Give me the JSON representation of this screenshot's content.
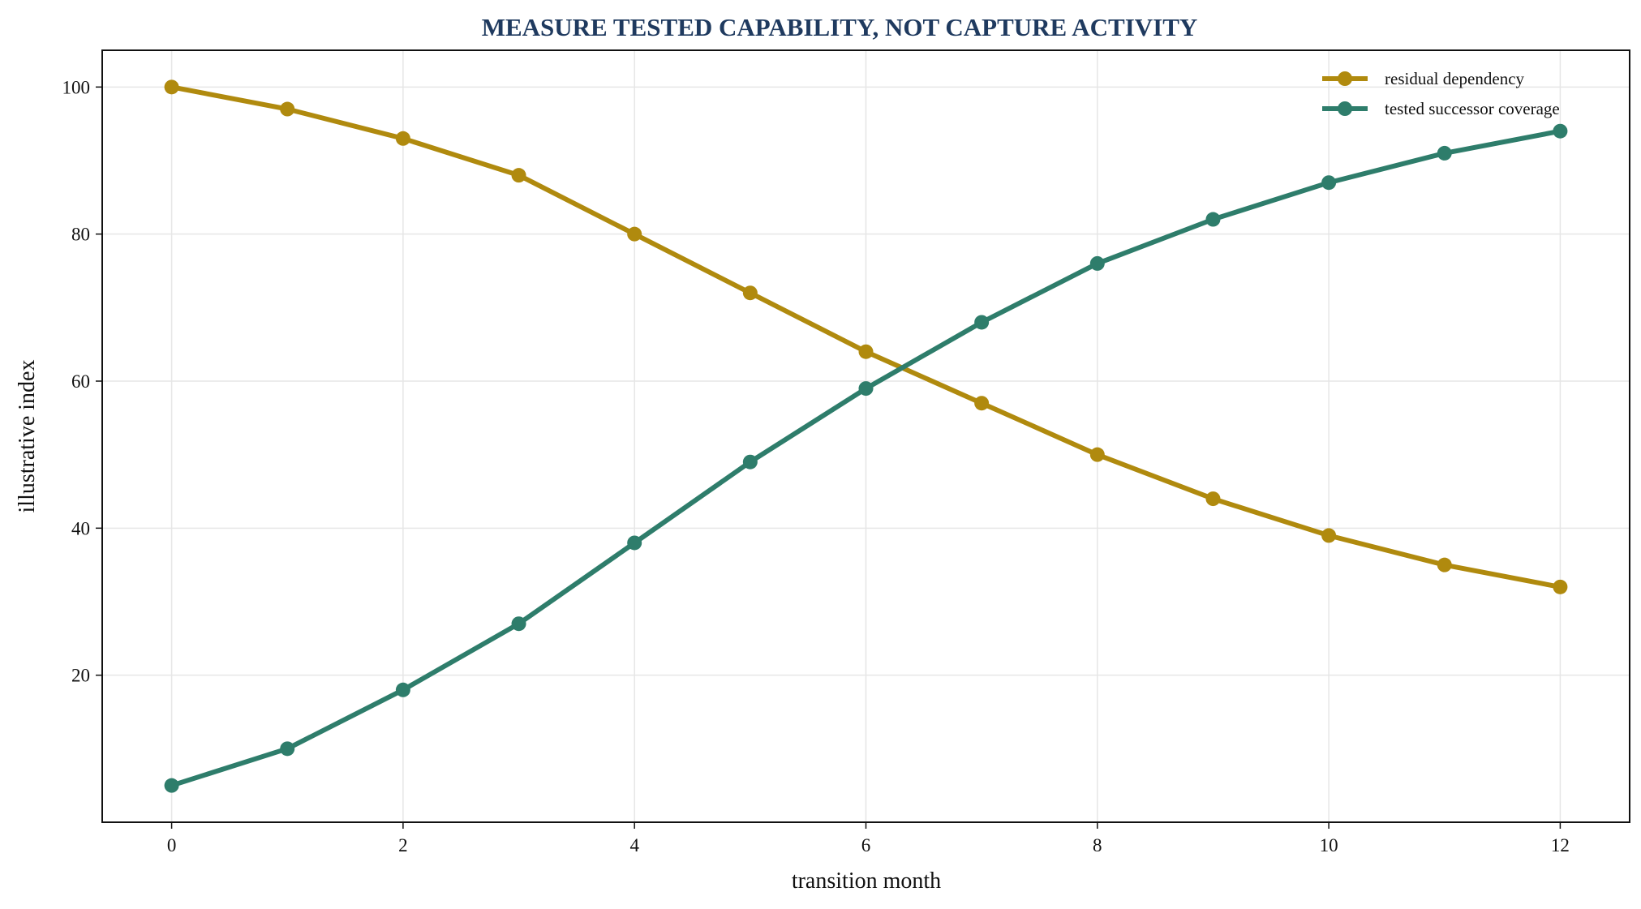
{
  "chart_data": {
    "type": "line",
    "title": "MEASURE TESTED CAPABILITY, NOT CAPTURE ACTIVITY",
    "xlabel": "transition month",
    "ylabel": "illustrative index",
    "x": [
      0,
      1,
      2,
      3,
      4,
      5,
      6,
      7,
      8,
      9,
      10,
      11,
      12
    ],
    "xlim": [
      -0.6,
      12.6
    ],
    "ylim": [
      0,
      105
    ],
    "xticks": [
      0,
      2,
      4,
      6,
      8,
      10,
      12
    ],
    "yticks": [
      20,
      40,
      60,
      80,
      100
    ],
    "grid": true,
    "legend_position": "top-right",
    "series": [
      {
        "name": "residual dependency",
        "color": "#b08a0e",
        "values": [
          100,
          97,
          93,
          88,
          80,
          72,
          64,
          57,
          50,
          44,
          39,
          35,
          32
        ]
      },
      {
        "name": "tested successor coverage",
        "color": "#2e7d6b",
        "values": [
          5,
          10,
          18,
          27,
          38,
          49,
          59,
          68,
          76,
          82,
          87,
          91,
          94
        ]
      }
    ]
  }
}
